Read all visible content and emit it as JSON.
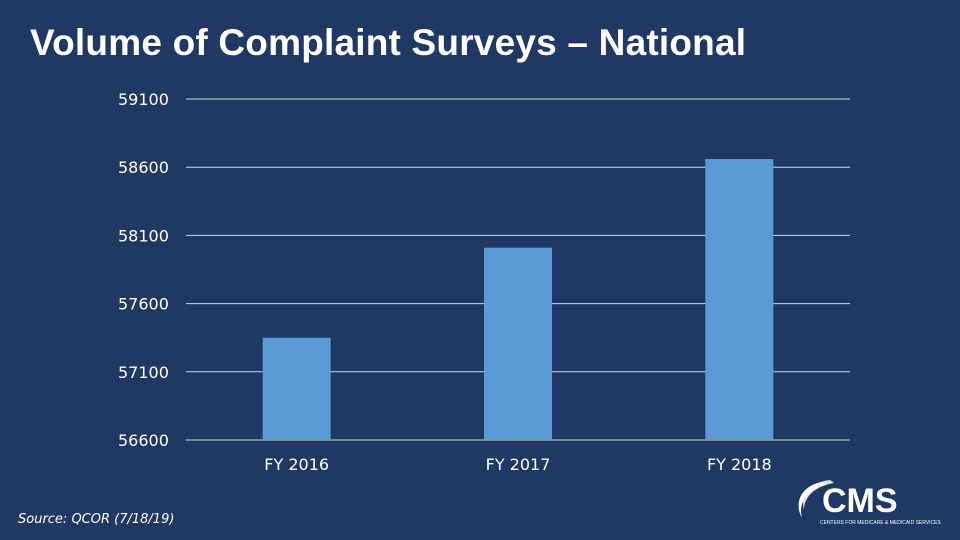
{
  "slide": {
    "title": "Volume of Complaint Surveys – National",
    "source": "Source: QCOR (7/18/19)",
    "logo_text": "CMS",
    "logo_subtext": "CENTERS FOR MEDICARE & MEDICAID SERVICES"
  },
  "chart_data": {
    "type": "bar",
    "title": "",
    "xlabel": "",
    "ylabel": "",
    "categories": [
      "FY 2016",
      "FY 2017",
      "FY 2018"
    ],
    "values": [
      57350,
      58010,
      58660
    ],
    "ylim": [
      56600,
      59100
    ],
    "yticks": [
      59100,
      58600,
      58100,
      57600,
      57100,
      56600
    ],
    "grid": true,
    "legend": "none",
    "bar_color": "#5b9bd5",
    "gridline_color": "#d9d9d9"
  }
}
